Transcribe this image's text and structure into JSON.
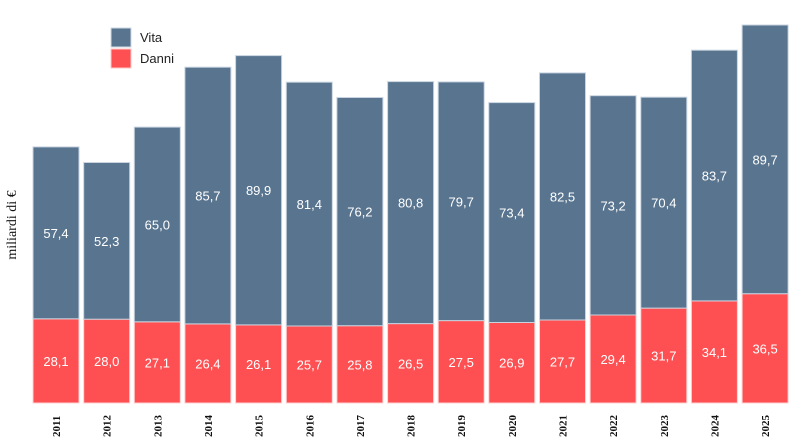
{
  "chart_data": {
    "type": "bar",
    "stacked": true,
    "title": "",
    "xlabel": "",
    "ylabel": "miliardi di €",
    "categories": [
      "2011",
      "2012",
      "2013",
      "2014",
      "2015",
      "2016",
      "2017",
      "2018",
      "2019",
      "2020",
      "2021",
      "2022",
      "2023",
      "2024",
      "2025"
    ],
    "series": [
      {
        "name": "Danni",
        "color": "#fe5052",
        "values": [
          28.1,
          28.0,
          27.1,
          26.4,
          26.1,
          25.7,
          25.8,
          26.5,
          27.5,
          26.9,
          27.7,
          29.4,
          31.7,
          34.1,
          36.5
        ],
        "labels": [
          "28,1",
          "28,0",
          "27,1",
          "26,4",
          "26,1",
          "25,7",
          "25,8",
          "26,5",
          "27,5",
          "26,9",
          "27,7",
          "29,4",
          "31,7",
          "34,1",
          "36,5"
        ]
      },
      {
        "name": "Vita",
        "color": "#58748f",
        "values": [
          57.4,
          52.3,
          65.0,
          85.7,
          89.9,
          81.4,
          76.2,
          80.8,
          79.7,
          73.4,
          82.5,
          73.2,
          70.4,
          83.7,
          89.7
        ],
        "labels": [
          "57,4",
          "52,3",
          "65,0",
          "85,7",
          "89,9",
          "81,4",
          "76,2",
          "80,8",
          "79,7",
          "73,4",
          "82,5",
          "73,2",
          "70,4",
          "83,7",
          "89,7"
        ]
      }
    ],
    "legend": {
      "position": "top-left",
      "entries": [
        {
          "name": "Vita",
          "color": "#58748f"
        },
        {
          "name": "Danni",
          "color": "#fe5052"
        }
      ]
    },
    "ylim": [
      0,
      126.2
    ],
    "grid": false,
    "y_axis_ticks_visible": false
  }
}
